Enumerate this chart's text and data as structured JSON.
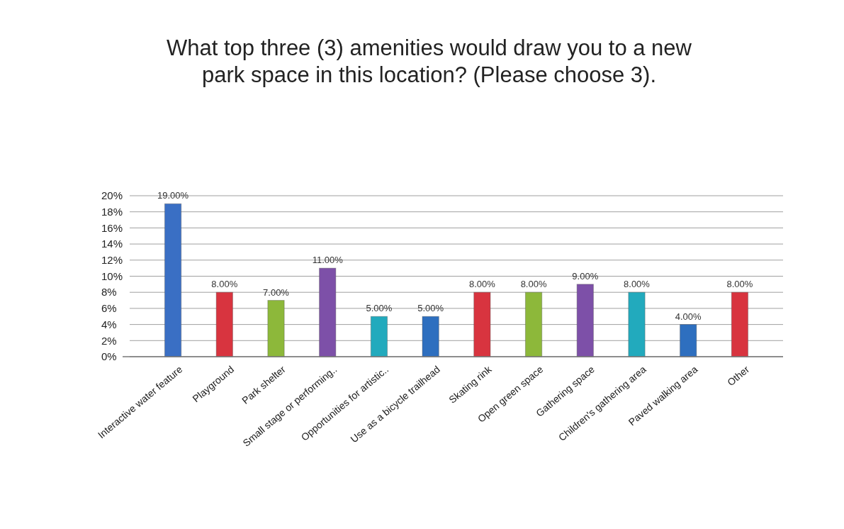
{
  "chart_data": {
    "type": "bar",
    "title": "What top three (3) amenities would draw you to a new park space in this location? (Please choose 3).",
    "categories": [
      "Interactive water feature",
      "Playground",
      "Park shelter",
      "Small stage or performing..",
      "Opportunities for artistic..",
      "Use as a bicycle trailhead",
      "Skating rink",
      "Open green space",
      "Gathering space",
      "Children's gathering area",
      "Paved walking area",
      "Other"
    ],
    "values": [
      19,
      8,
      7,
      11,
      5,
      5,
      8,
      8,
      9,
      8,
      4,
      8
    ],
    "colors": [
      "#3a6fc4",
      "#d8343f",
      "#8db83a",
      "#7d50a8",
      "#22aabd",
      "#2e6fbf",
      "#d8343f",
      "#8db83a",
      "#7d50a8",
      "#22aabd",
      "#2e6fbf",
      "#d8343f"
    ],
    "value_labels": [
      "19.00%",
      "8.00%",
      "7.00%",
      "11.00%",
      "5.00%",
      "5.00%",
      "8.00%",
      "8.00%",
      "9.00%",
      "8.00%",
      "4.00%",
      "8.00%"
    ],
    "ylim": [
      0,
      20
    ],
    "yticks": [
      {
        "value": 0,
        "label": "0%"
      },
      {
        "value": 2,
        "label": "2%"
      },
      {
        "value": 4,
        "label": "4%"
      },
      {
        "value": 6,
        "label": "6%"
      },
      {
        "value": 8,
        "label": "8%"
      },
      {
        "value": 10,
        "label": "10%"
      },
      {
        "value": 12,
        "label": "12%"
      },
      {
        "value": 14,
        "label": "14%"
      },
      {
        "value": 16,
        "label": "16%"
      },
      {
        "value": 18,
        "label": "18%"
      },
      {
        "value": 20,
        "label": "20%"
      }
    ],
    "grid": "y"
  }
}
